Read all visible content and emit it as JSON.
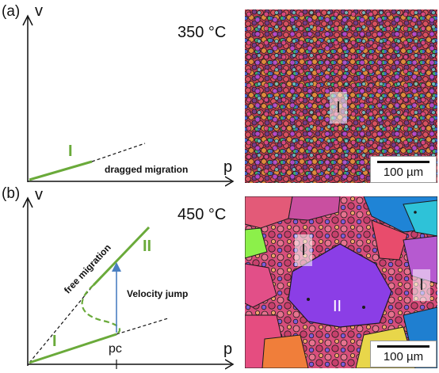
{
  "panel_a": {
    "label": "(a)",
    "temperature": "350 °C",
    "axis_y": "v",
    "axis_x": "p",
    "regime_label": "I",
    "note": "dragged migration",
    "micro_region_label": "I",
    "scale_bar": "100 µm"
  },
  "panel_b": {
    "label": "(b)",
    "temperature": "450 °C",
    "axis_y": "v",
    "axis_x": "p",
    "regime_low": "I",
    "regime_high": "II",
    "free_note": "free migration",
    "jump_note": "Velocity jump",
    "pc_label": "pc",
    "micro_labels": [
      "I",
      "I",
      "II"
    ],
    "scale_bar": "100 µm"
  },
  "colors": {
    "green": "#6aaa3a",
    "arrow_blue": "#4a7fc1"
  }
}
